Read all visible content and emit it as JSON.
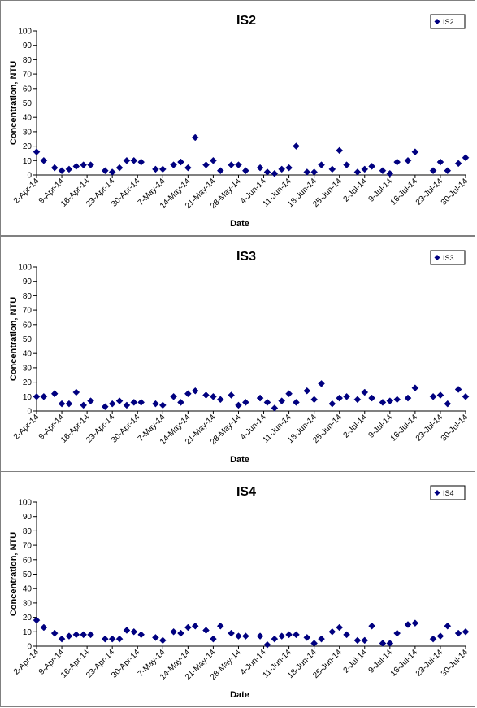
{
  "chart_data": [
    {
      "type": "scatter",
      "title": "IS2",
      "xlabel": "Date",
      "ylabel": "Concentration, NTU",
      "ylim": [
        0,
        100
      ],
      "yticks": [
        0,
        10,
        20,
        30,
        40,
        50,
        60,
        70,
        80,
        90,
        100
      ],
      "x_range": [
        "2014-04-02",
        "2014-07-30"
      ],
      "x_tick_labels": [
        "2-Apr-14",
        "9-Apr-14",
        "16-Apr-14",
        "23-Apr-14",
        "30-Apr-14",
        "7-May-14",
        "14-May-14",
        "21-May-14",
        "28-May-14",
        "4-Jun-14",
        "11-Jun-14",
        "18-Jun-14",
        "25-Jun-14",
        "2-Jul-14",
        "9-Jul-14",
        "16-Jul-14",
        "23-Jul-14",
        "30-Jul-14"
      ],
      "legend": "top-right",
      "marker_color": "#000080",
      "series": [
        {
          "name": "IS2",
          "x": [
            "2014-04-02",
            "2014-04-04",
            "2014-04-07",
            "2014-04-09",
            "2014-04-11",
            "2014-04-13",
            "2014-04-15",
            "2014-04-17",
            "2014-04-21",
            "2014-04-23",
            "2014-04-25",
            "2014-04-27",
            "2014-04-29",
            "2014-05-01",
            "2014-05-05",
            "2014-05-07",
            "2014-05-10",
            "2014-05-12",
            "2014-05-14",
            "2014-05-16",
            "2014-05-19",
            "2014-05-21",
            "2014-05-23",
            "2014-05-26",
            "2014-05-28",
            "2014-05-30",
            "2014-06-03",
            "2014-06-05",
            "2014-06-07",
            "2014-06-09",
            "2014-06-11",
            "2014-06-13",
            "2014-06-16",
            "2014-06-18",
            "2014-06-20",
            "2014-06-23",
            "2014-06-25",
            "2014-06-27",
            "2014-06-30",
            "2014-07-02",
            "2014-07-04",
            "2014-07-07",
            "2014-07-09",
            "2014-07-11",
            "2014-07-14",
            "2014-07-16",
            "2014-07-21",
            "2014-07-23",
            "2014-07-25",
            "2014-07-28",
            "2014-07-30"
          ],
          "y": [
            16,
            10,
            5,
            3,
            4,
            6,
            7,
            7,
            3,
            2,
            5,
            10,
            10,
            9,
            4,
            4,
            7,
            9,
            5,
            26,
            7,
            10,
            3,
            7,
            7,
            3,
            5,
            2,
            1,
            4,
            5,
            20,
            2,
            2,
            7,
            4,
            17,
            7,
            2,
            4,
            6,
            3,
            1,
            9,
            10,
            16,
            3,
            9,
            3,
            8,
            12
          ]
        }
      ]
    },
    {
      "type": "scatter",
      "title": "IS3",
      "xlabel": "Date",
      "ylabel": "Concentration, NTU",
      "ylim": [
        0,
        100
      ],
      "yticks": [
        0,
        10,
        20,
        30,
        40,
        50,
        60,
        70,
        80,
        90,
        100
      ],
      "x_range": [
        "2014-04-02",
        "2014-07-30"
      ],
      "x_tick_labels": [
        "2-Apr-14",
        "9-Apr-14",
        "16-Apr-14",
        "23-Apr-14",
        "30-Apr-14",
        "7-May-14",
        "14-May-14",
        "21-May-14",
        "28-May-14",
        "4-Jun-14",
        "11-Jun-14",
        "18-Jun-14",
        "25-Jun-14",
        "2-Jul-14",
        "9-Jul-14",
        "16-Jul-14",
        "23-Jul-14",
        "30-Jul-14"
      ],
      "legend": "top-right",
      "marker_color": "#000080",
      "series": [
        {
          "name": "IS3",
          "x": [
            "2014-04-02",
            "2014-04-04",
            "2014-04-07",
            "2014-04-09",
            "2014-04-11",
            "2014-04-13",
            "2014-04-15",
            "2014-04-17",
            "2014-04-21",
            "2014-04-23",
            "2014-04-25",
            "2014-04-27",
            "2014-04-29",
            "2014-05-01",
            "2014-05-05",
            "2014-05-07",
            "2014-05-10",
            "2014-05-12",
            "2014-05-14",
            "2014-05-16",
            "2014-05-19",
            "2014-05-21",
            "2014-05-23",
            "2014-05-26",
            "2014-05-28",
            "2014-05-30",
            "2014-06-03",
            "2014-06-05",
            "2014-06-07",
            "2014-06-09",
            "2014-06-11",
            "2014-06-13",
            "2014-06-16",
            "2014-06-18",
            "2014-06-20",
            "2014-06-23",
            "2014-06-25",
            "2014-06-27",
            "2014-06-30",
            "2014-07-02",
            "2014-07-04",
            "2014-07-07",
            "2014-07-09",
            "2014-07-11",
            "2014-07-14",
            "2014-07-16",
            "2014-07-21",
            "2014-07-23",
            "2014-07-25",
            "2014-07-28",
            "2014-07-30"
          ],
          "y": [
            10,
            10,
            12,
            5,
            5,
            13,
            4,
            7,
            3,
            5,
            7,
            4,
            6,
            6,
            5,
            4,
            10,
            6,
            12,
            14,
            11,
            10,
            8,
            11,
            4,
            6,
            9,
            6,
            2,
            7,
            12,
            6,
            14,
            8,
            19,
            5,
            9,
            10,
            8,
            13,
            9,
            6,
            7,
            8,
            9,
            16,
            10,
            11,
            5,
            15,
            10
          ]
        }
      ]
    },
    {
      "type": "scatter",
      "title": "IS4",
      "xlabel": "Date",
      "ylabel": "Concentration, NTU",
      "ylim": [
        0,
        100
      ],
      "yticks": [
        0,
        10,
        20,
        30,
        40,
        50,
        60,
        70,
        80,
        90,
        100
      ],
      "x_range": [
        "2014-04-02",
        "2014-07-30"
      ],
      "x_tick_labels": [
        "2-Apr-14",
        "9-Apr-14",
        "16-Apr-14",
        "23-Apr-14",
        "30-Apr-14",
        "7-May-14",
        "14-May-14",
        "21-May-14",
        "28-May-14",
        "4-Jun-14",
        "11-Jun-14",
        "18-Jun-14",
        "25-Jun-14",
        "2-Jul-14",
        "9-Jul-14",
        "16-Jul-14",
        "23-Jul-14",
        "30-Jul-14"
      ],
      "legend": "top-right",
      "marker_color": "#000080",
      "series": [
        {
          "name": "IS4",
          "x": [
            "2014-04-02",
            "2014-04-04",
            "2014-04-07",
            "2014-04-09",
            "2014-04-11",
            "2014-04-13",
            "2014-04-15",
            "2014-04-17",
            "2014-04-21",
            "2014-04-23",
            "2014-04-25",
            "2014-04-27",
            "2014-04-29",
            "2014-05-01",
            "2014-05-05",
            "2014-05-07",
            "2014-05-10",
            "2014-05-12",
            "2014-05-14",
            "2014-05-16",
            "2014-05-19",
            "2014-05-21",
            "2014-05-23",
            "2014-05-26",
            "2014-05-28",
            "2014-05-30",
            "2014-06-03",
            "2014-06-05",
            "2014-06-07",
            "2014-06-09",
            "2014-06-11",
            "2014-06-13",
            "2014-06-16",
            "2014-06-18",
            "2014-06-20",
            "2014-06-23",
            "2014-06-25",
            "2014-06-27",
            "2014-06-30",
            "2014-07-02",
            "2014-07-04",
            "2014-07-07",
            "2014-07-09",
            "2014-07-11",
            "2014-07-14",
            "2014-07-16",
            "2014-07-21",
            "2014-07-23",
            "2014-07-25",
            "2014-07-28",
            "2014-07-30"
          ],
          "y": [
            18,
            13,
            9,
            5,
            7,
            8,
            8,
            8,
            5,
            5,
            5,
            11,
            10,
            8,
            6,
            4,
            10,
            9,
            13,
            14,
            11,
            5,
            14,
            9,
            7,
            7,
            7,
            1,
            5,
            7,
            8,
            8,
            6,
            2,
            5,
            10,
            13,
            8,
            4,
            4,
            14,
            2,
            2,
            9,
            15,
            16,
            5,
            7,
            14,
            9,
            10
          ]
        }
      ]
    }
  ]
}
